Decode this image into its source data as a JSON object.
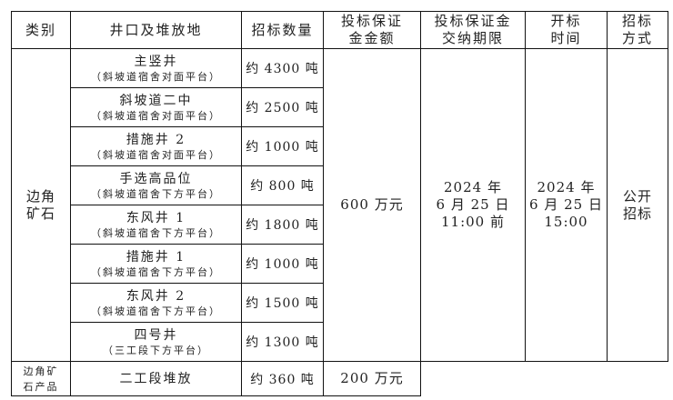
{
  "headers": [
    "类别",
    "井口及堆放地",
    "招标数量",
    "投标保证\n金金额",
    "投标保证金\n交纳期限",
    "开标\n时间",
    "招标\n方式"
  ],
  "category_main": "边角\n矿石",
  "rows": [
    {
      "name": "主竖井",
      "place": "（斜坡道宿舍对面平台）",
      "qty": "约 4300 吨"
    },
    {
      "name": "斜坡道二中",
      "place": "（斜坡道宿舍对面平台）",
      "qty": "约 2500 吨"
    },
    {
      "name": "措施井 2",
      "place": "（斜坡道宿舍对面平台）",
      "qty": "约 1000 吨"
    },
    {
      "name": "手选高品位",
      "place": "（斜坡道宿舍下方平台）",
      "qty": "约 800 吨"
    },
    {
      "name": "东风井 1",
      "place": "（斜坡道宿舍下方平台）",
      "qty": "约 1800 吨"
    },
    {
      "name": "措施井 1",
      "place": "（斜坡道宿舍下方平台）",
      "qty": "约 1000 吨"
    },
    {
      "name": "东风井 2",
      "place": "（斜坡道宿舍下方平台）",
      "qty": "约 1500 吨"
    },
    {
      "name": "四号井",
      "place": "（三工段下方平台）",
      "qty": "约 1300 吨"
    }
  ],
  "deposit_main": "600 万元",
  "deadline": "2024 年\n6 月 25 日\n11:00 前",
  "open_time": "2024 年\n6 月 25 日\n15:00",
  "method": "公开\n招标",
  "last_row": {
    "category": "边角矿\n石产品",
    "place": "二工段堆放",
    "qty": "约 360 吨",
    "deposit": "200 万元"
  }
}
